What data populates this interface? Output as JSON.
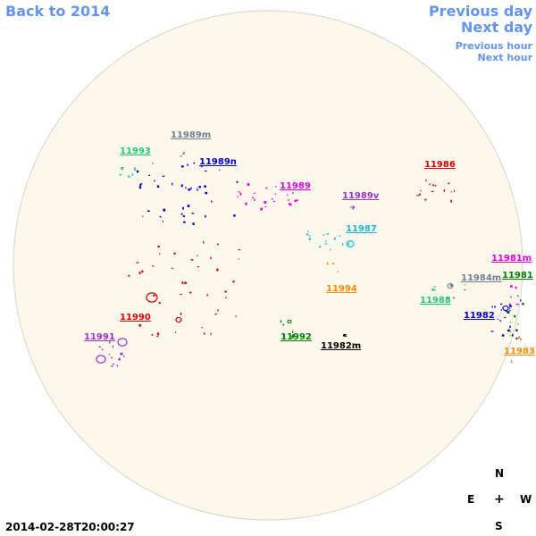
{
  "nav": {
    "back": "Back to 2014",
    "previous_day": "Previous day",
    "next_day": "Next day",
    "previous_hour": "Previous hour",
    "next_hour": "Next hour"
  },
  "timestamp": "2014-02-28T20:00:27",
  "compass": {
    "north": "N",
    "east": "E",
    "center": "+",
    "west": "W",
    "south": "S"
  },
  "colors": {
    "disk_fill": "#fdf8ec",
    "disk_stroke": "#d9d4c8",
    "link": "#6495ed"
  },
  "regions": [
    {
      "id": "11993",
      "label": "11993",
      "color": "#21c97a"
    },
    {
      "id": "11989m",
      "label": "11989m",
      "color": "#708090"
    },
    {
      "id": "11989n",
      "label": "11989n",
      "color": "#0000cd"
    },
    {
      "id": "11986",
      "label": "11986",
      "color": "#dd0000"
    },
    {
      "id": "11989",
      "label": "11989",
      "color": "#e000e0"
    },
    {
      "id": "11989v",
      "label": "11989v",
      "color": "#9933cc"
    },
    {
      "id": "11987",
      "label": "11987",
      "color": "#1ab6df"
    },
    {
      "id": "11981m",
      "label": "11981m",
      "color": "#e000e0"
    },
    {
      "id": "11984m",
      "label": "11984m",
      "color": "#708090"
    },
    {
      "id": "11981",
      "label": "11981",
      "color": "#008000"
    },
    {
      "id": "11994",
      "label": "11994",
      "color": "#ff8c00"
    },
    {
      "id": "11988",
      "label": "11988",
      "color": "#21c97a"
    },
    {
      "id": "11982",
      "label": "11982",
      "color": "#0000cd"
    },
    {
      "id": "11990",
      "label": "11990",
      "color": "#dd0000"
    },
    {
      "id": "11991",
      "label": "11991",
      "color": "#9933cc"
    },
    {
      "id": "11992",
      "label": "11992",
      "color": "#008000"
    },
    {
      "id": "11982m",
      "label": "11982m",
      "color": "#000000"
    },
    {
      "id": "11983",
      "label": "11983",
      "color": "#ff8c00"
    }
  ]
}
